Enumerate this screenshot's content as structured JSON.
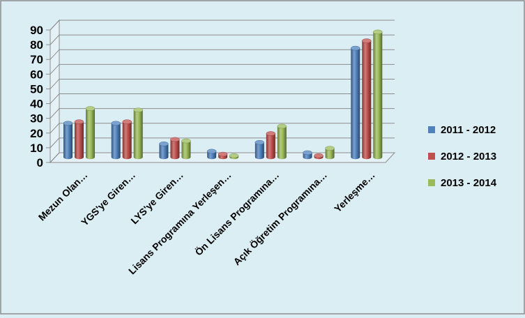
{
  "chart_data": {
    "type": "bar",
    "categories": [
      "Mezun Olan…",
      "YGS'ye Giren…",
      "LYS'ye Giren…",
      "Lisans Programına Yerleşen…",
      "Ön Lisans Programına…",
      "Açık Öğretim Programına…",
      "Yerleşme…"
    ],
    "series": [
      {
        "name": "2011 - 2012",
        "color": "#4f81bd",
        "values": [
          23,
          23,
          9,
          4,
          10,
          3,
          74
        ]
      },
      {
        "name": "2012 - 2013",
        "color": "#c0504d",
        "values": [
          24,
          24,
          12,
          2,
          16,
          1,
          79
        ]
      },
      {
        "name": "2013 - 2014",
        "color": "#9bbb59",
        "values": [
          33,
          32,
          11,
          1,
          21,
          6,
          85
        ]
      }
    ],
    "yticks": [
      0,
      10,
      20,
      30,
      40,
      50,
      60,
      70,
      80,
      90
    ],
    "ylim": [
      0,
      90
    ],
    "grid": true,
    "legend_position": "right"
  }
}
